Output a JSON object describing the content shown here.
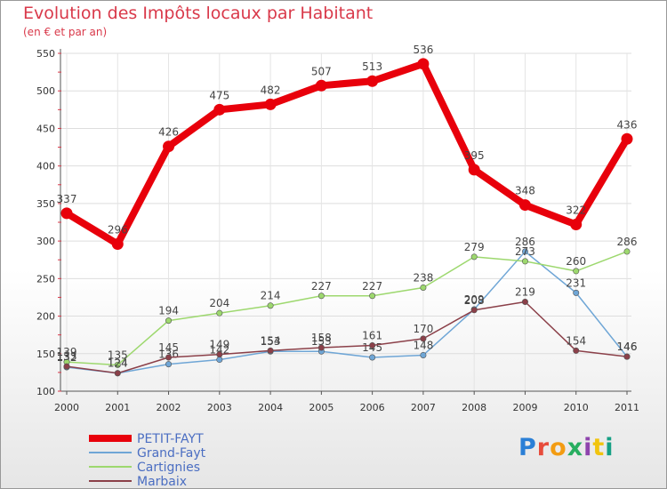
{
  "chart_data": {
    "type": "line",
    "title": "Evolution des Impôts locaux par Habitant",
    "subtitle": "(en € et par an)",
    "xlabel": "",
    "ylabel": "",
    "x": [
      "2000",
      "2001",
      "2002",
      "2003",
      "2004",
      "2005",
      "2006",
      "2007",
      "2008",
      "2009",
      "2010",
      "2011"
    ],
    "ylim": [
      100,
      550
    ],
    "yticks": [
      "100",
      "150",
      "200",
      "250",
      "300",
      "350",
      "400",
      "450",
      "500",
      "550"
    ],
    "grid": true,
    "legend_position": "bottom-left",
    "series": [
      {
        "name": "PETIT-FAYT",
        "color": "#e8000b",
        "values": [
          337,
          296,
          426,
          475,
          482,
          507,
          513,
          536,
          395,
          348,
          322,
          436
        ],
        "labels": [
          "337",
          "296",
          "426",
          "475",
          "482",
          "507",
          "513",
          "536",
          "395",
          "348",
          "322",
          "436"
        ]
      },
      {
        "name": "Grand-Fayt",
        "color": "#6fa6d6",
        "values": [
          132,
          124,
          136,
          142,
          153,
          153,
          145,
          148,
          209,
          286,
          231,
          146
        ],
        "labels": [
          "132",
          "124",
          "136",
          "142",
          "153",
          "153",
          "145",
          "148",
          "209",
          "286",
          "231",
          "146"
        ]
      },
      {
        "name": "Cartignies",
        "color": "#9dd86e",
        "values": [
          139,
          135,
          194,
          204,
          214,
          227,
          227,
          238,
          279,
          273,
          260,
          286
        ],
        "labels": [
          "139",
          "135",
          "194",
          "204",
          "214",
          "227",
          "227",
          "238",
          "279",
          "273",
          "260",
          "286"
        ]
      },
      {
        "name": "Marbaix",
        "color": "#8b4049",
        "values": [
          133,
          124,
          145,
          149,
          154,
          158,
          161,
          170,
          208,
          219,
          154,
          146
        ],
        "labels": [
          "133",
          "124",
          "145",
          "149",
          "154",
          "158",
          "161",
          "170",
          "208",
          "219",
          "154",
          "146"
        ]
      }
    ]
  },
  "logo": {
    "text": "Proxiti",
    "colors": [
      "#2a7fd6",
      "#e74c3c",
      "#f39c12",
      "#27ae60",
      "#8e44ad",
      "#f1c40f",
      "#16a085"
    ]
  }
}
